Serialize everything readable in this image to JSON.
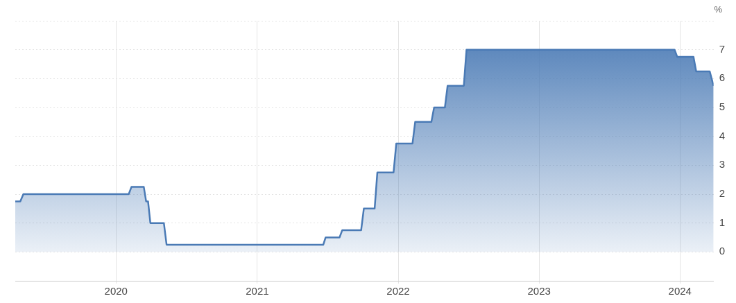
{
  "chart_data": {
    "type": "area",
    "ylabel": "%",
    "x": [
      "2019-04-15",
      "2019-04-28",
      "2019-05-06",
      "2020-02-03",
      "2020-02-10",
      "2020-03-13",
      "2020-03-19",
      "2020-03-24",
      "2020-03-30",
      "2020-05-04",
      "2020-05-11",
      "2021-06-21",
      "2021-06-27",
      "2021-08-02",
      "2021-08-09",
      "2021-09-27",
      "2021-10-04",
      "2021-11-01",
      "2021-11-08",
      "2021-12-20",
      "2021-12-27",
      "2022-02-07",
      "2022-02-14",
      "2022-03-28",
      "2022-04-04",
      "2022-05-02",
      "2022-05-09",
      "2022-06-20",
      "2022-06-27",
      "2023-12-18",
      "2023-12-25",
      "2024-02-05",
      "2024-02-12",
      "2024-03-18",
      "2024-03-28"
    ],
    "series": [
      {
        "color": "#4a7ab5",
        "values": [
          1.75,
          1.75,
          2,
          2,
          2.25,
          2.25,
          1.75,
          1.75,
          1,
          1,
          0.25,
          0.25,
          0.5,
          0.5,
          0.75,
          0.75,
          1.5,
          1.5,
          2.75,
          2.75,
          3.75,
          3.75,
          4.5,
          4.5,
          5,
          5,
          5.75,
          5.75,
          7,
          7,
          6.75,
          6.75,
          6.25,
          6.25,
          5.75
        ]
      }
    ],
    "xlim": [
      "2019-04-15",
      "2024-03-28"
    ],
    "xticks": [
      "2020",
      "2021",
      "2022",
      "2023",
      "2024"
    ],
    "ylim": [
      -1,
      8
    ],
    "yticks": [
      0,
      1,
      2,
      3,
      4,
      5,
      6,
      7,
      {
        "value": 8,
        "label": null
      }
    ],
    "grid": true,
    "legend": false,
    "marker": "none",
    "line_style": "solid"
  }
}
